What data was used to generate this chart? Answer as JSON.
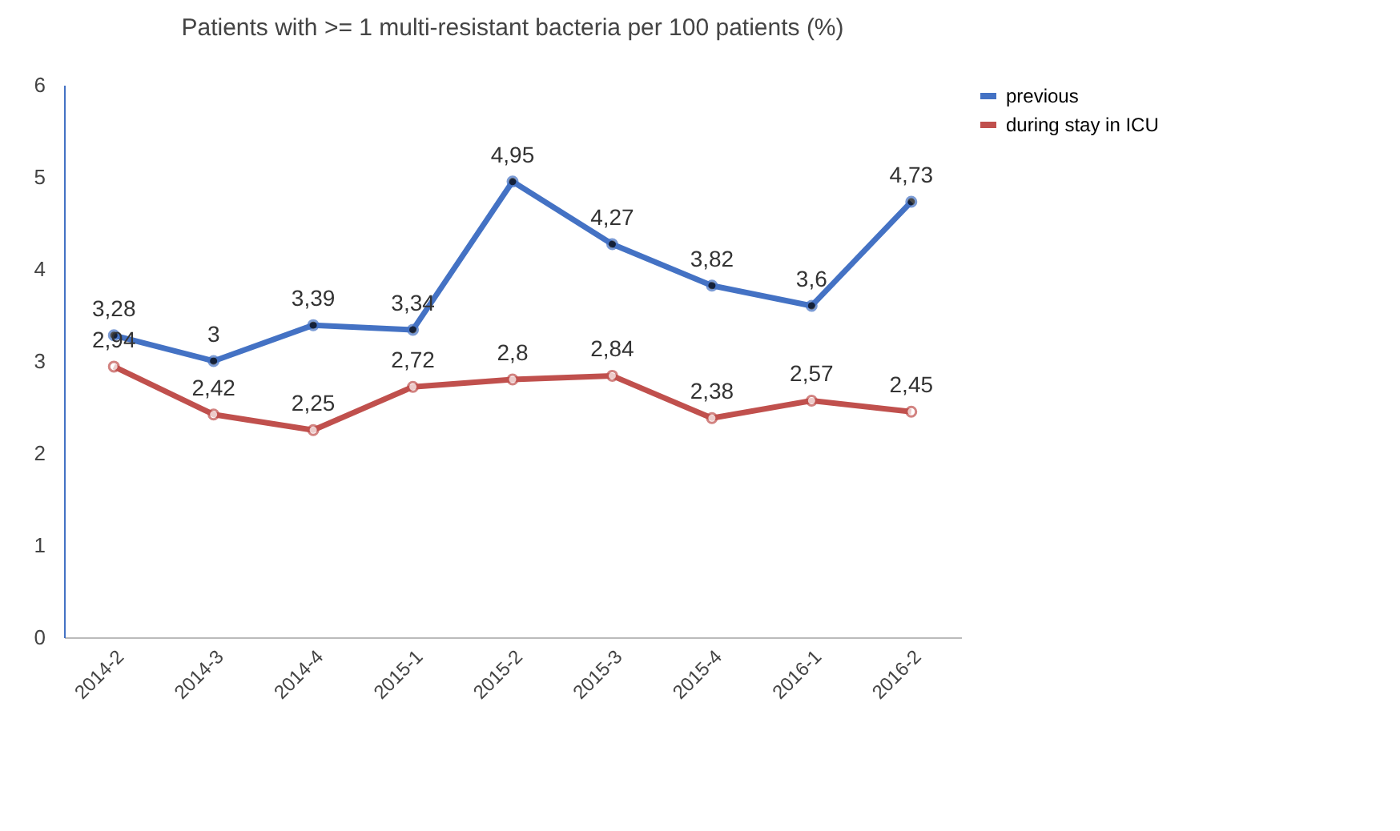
{
  "chart_data": {
    "type": "line",
    "title": "Patients with >= 1 multi-resistant bacteria per 100 patients (%)",
    "categories": [
      "2014-2",
      "2014-3",
      "2014-4",
      "2015-1",
      "2015-2",
      "2015-3",
      "2015-4",
      "2016-1",
      "2016-2"
    ],
    "series": [
      {
        "name": "previous",
        "color": "#4472c4",
        "values": [
          3.28,
          3,
          3.39,
          3.34,
          4.95,
          4.27,
          3.82,
          3.6,
          4.73
        ],
        "value_labels": [
          "3,28",
          "3",
          "3,39",
          "3,34",
          "4,95",
          "4,27",
          "3,82",
          "3,6",
          "4,73"
        ]
      },
      {
        "name": "during stay in ICU",
        "color": "#c0504d",
        "values": [
          2.94,
          2.42,
          2.25,
          2.72,
          2.8,
          2.84,
          2.38,
          2.57,
          2.45
        ],
        "value_labels": [
          "2,94",
          "2,42",
          "2,25",
          "2,72",
          "2,8",
          "2,84",
          "2,38",
          "2,57",
          "2,45"
        ]
      }
    ],
    "ylim": [
      0,
      6
    ],
    "yticks": [
      0,
      1,
      2,
      3,
      4,
      5,
      6
    ],
    "legend": "right",
    "marker": "circle",
    "line_style": "solid"
  }
}
